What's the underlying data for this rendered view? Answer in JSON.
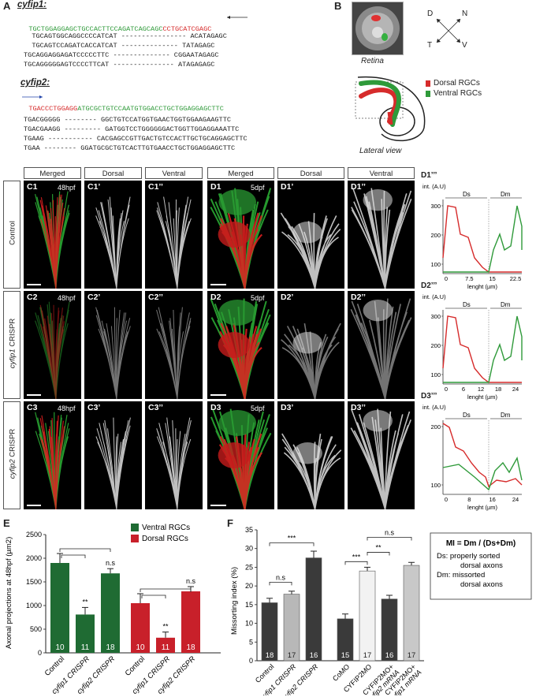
{
  "panel_letters": {
    "a": "A",
    "b": "B",
    "e": "E",
    "f": "F"
  },
  "panel_a": {
    "gene1": "cyfip1:",
    "gene1_target_green": "TGCTGGAGGAGCTGCCACTTCCAGATCAGCAGC",
    "gene1_target_red": "CCTGCATCGAGC",
    "gene1_alleles": [
      "  TGCAGTGGCAGGCCCCATCAT ---------------- ACATAGAGC",
      "  TGCAGTCCAGATCACCATCAT -------------- TATAGAGC",
      "TGCAGGAGGAGATCCCCCTTC -------------- CGGAATAGAGC",
      "TGCAGGGGGAGTCCCCTTCAT --------------- ATAGAGAGC"
    ],
    "gene2": "cyfip2:",
    "gene2_target_red": "TGACCCTGGAGG",
    "gene2_target_green": "ATGCGCTGTCCAATGTGGACCTGCTGGAGGAGCTTC",
    "gene2_alleles": [
      "TGACGGGGG -------- GGCTGTCCATGGTGAACTGGTGGAAGAAGTTC",
      "TGACGAAGG --------- GATGGTCCTGGGGGGACTGGTTGGAGGAAATTC",
      "TGAAG ----------- CACGAGCCGTTGACTGTCCACTTGCTGCAGGAGCTTC",
      "TGAA -------- GGATGCGCTGTCACTTGTGAACCTGCTGGAGGAGCTTC"
    ]
  },
  "panel_b": {
    "retina_label": "Retina",
    "lateral_label": "Lateral view",
    "compass": {
      "d": "D",
      "n": "N",
      "t": "T",
      "v": "V"
    },
    "legend": [
      {
        "label": "Dorsal RGCs",
        "color": "#d62b2b"
      },
      {
        "label": "Ventral RGCs",
        "color": "#2f9a3a"
      }
    ]
  },
  "grid": {
    "headers": [
      "Merged",
      "Dorsal",
      "Ventral",
      "Merged",
      "Dorsal",
      "Ventral"
    ],
    "row_labels": [
      "Control",
      "CRISPR"
    ],
    "row_genes": [
      "cyfip1",
      "cyfip2"
    ],
    "tiles": [
      [
        "C1",
        "C1’",
        "C1’’",
        "D1",
        "D1’",
        "D1’’"
      ],
      [
        "C2",
        "C2’",
        "C2’’",
        "D2",
        "D2’",
        "D2’’"
      ],
      [
        "C3",
        "C3’",
        "C3’’",
        "D3",
        "D3’",
        "D3’’"
      ]
    ],
    "times": {
      "c": "48hpf",
      "d": "5dpf"
    }
  },
  "profiles": {
    "labels": [
      "D1’’’",
      "D2’’’",
      "D3’’’"
    ],
    "ylabel": "int. (A.U)",
    "xlabel": "lenght (µm)",
    "region_ds": "Ds",
    "region_dm": "Dm",
    "plots": [
      {
        "yticks": [
          "300",
          "200",
          "100"
        ],
        "xticks": [
          "0",
          "7.5",
          "15",
          "22.5"
        ]
      },
      {
        "yticks": [
          "300",
          "200",
          "100"
        ],
        "xticks": [
          "0",
          "6",
          "12",
          "18",
          "24"
        ]
      },
      {
        "yticks": [
          "200",
          "100"
        ],
        "xticks": [
          "0",
          "8",
          "16",
          "24"
        ]
      }
    ]
  },
  "chart_data": [
    {
      "type": "bar",
      "panel": "E",
      "ylabel": "Axonal projections at 48hpf (µm2)",
      "ylim": [
        0,
        2500
      ],
      "yticks": [
        "0",
        "500",
        "1000",
        "1500",
        "2000",
        "2500"
      ],
      "categories": [
        "Control",
        "cyfip1 CRISPR",
        "cyfip2 CRISPR"
      ],
      "legend": [
        {
          "name": "Ventral RGCs",
          "color": "#1f6b33"
        },
        {
          "name": "Dorsal RGCs",
          "color": "#c8202a"
        }
      ],
      "series": [
        {
          "name": "Ventral RGCs",
          "values": [
            1900,
            810,
            1680
          ],
          "errors": [
            200,
            150,
            100
          ],
          "n": [
            "10",
            "11",
            "18"
          ],
          "sig": [
            "",
            "**",
            "n.s"
          ]
        },
        {
          "name": "Dorsal RGCs",
          "values": [
            1050,
            320,
            1300
          ],
          "errors": [
            200,
            120,
            100
          ],
          "n": [
            "10",
            "11",
            "18"
          ],
          "sig": [
            "",
            "**",
            "n.s"
          ]
        }
      ]
    },
    {
      "type": "bar",
      "panel": "F",
      "ylabel": "Missorting index (%)",
      "ylim": [
        0,
        35
      ],
      "yticks": [
        "0",
        "5",
        "10",
        "15",
        "20",
        "25",
        "30",
        "35"
      ],
      "categories": [
        "Control",
        "cyfip1 CRISPR",
        "cyfip2 CRISPR",
        "CoMO",
        "CYFIP2MO",
        "CYFIP2MO+ cyfip2 mRNA",
        "CYFIP2MO+ cyfip1 mRNA"
      ],
      "category_lines": [
        [
          "Control"
        ],
        [
          "cyfip1 CRISPR"
        ],
        [
          "cyfip2 CRISPR"
        ],
        [
          "CoMO"
        ],
        [
          "CYFIP2MO"
        ],
        [
          "CYFIP2MO+",
          "cyfip2 mRNA"
        ],
        [
          "CYFIP2MO+",
          "cyfip1 mRNA"
        ]
      ],
      "values": [
        15.5,
        17.8,
        27.5,
        11.2,
        24,
        16.5,
        25.5
      ],
      "errors": [
        1.2,
        0.8,
        1.8,
        1.3,
        1,
        1,
        0.8
      ],
      "n": [
        "18",
        "17",
        "16",
        "15",
        "17",
        "16",
        "17"
      ],
      "colors": [
        "#3a3a3a",
        "#b8b8b8",
        "#3a3a3a",
        "#3a3a3a",
        "#f2f2f2",
        "#3a3a3a",
        "#c8c8c8"
      ],
      "sig": [
        {
          "label": "n.s"
        },
        {
          "label": "***"
        },
        {
          "label": "***"
        },
        {
          "label": "**"
        },
        {
          "label": "n.s"
        }
      ],
      "formula_title": "MI = Dm / (Ds+Dm)",
      "formula_lines": [
        "Ds: properly sorted",
        "dorsal axons",
        "Dm: missorted",
        "dorsal axons"
      ]
    }
  ]
}
